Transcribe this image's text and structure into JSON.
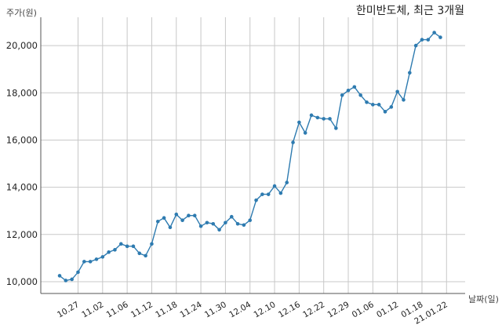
{
  "chart_data": {
    "type": "line",
    "title": "한미반도체, 최근 3개월",
    "ylabel": "주가(원)",
    "xlabel": "날짜(일)",
    "ylim": [
      9500,
      21200
    ],
    "yticks": [
      10000,
      12000,
      14000,
      16000,
      18000,
      20000
    ],
    "ytick_labels": [
      "10,000",
      "12,000",
      "14,000",
      "16,000",
      "18,000",
      "20,000"
    ],
    "grid": true,
    "line_color": "#2e7bb0",
    "xtick_labels": [
      "10.27",
      "11.02",
      "11.06",
      "11.12",
      "11.18",
      "11.24",
      "11.30",
      "12.04",
      "12.10",
      "12.16",
      "12.22",
      "12.29",
      "01.06",
      "01.12",
      "01.18",
      "21.01.22"
    ],
    "xtick_indices": [
      3,
      7,
      11,
      15,
      19,
      23,
      27,
      31,
      35,
      39,
      43,
      47,
      51,
      55,
      59,
      63
    ],
    "values": [
      10250,
      10050,
      10100,
      10400,
      10850,
      10850,
      10950,
      11050,
      11250,
      11350,
      11600,
      11500,
      11500,
      11200,
      11100,
      11600,
      12550,
      12700,
      12300,
      12850,
      12600,
      12800,
      12800,
      12350,
      12500,
      12450,
      12200,
      12500,
      12750,
      12450,
      12400,
      12600,
      13450,
      13700,
      13700,
      14050,
      13750,
      14200,
      15900,
      16750,
      16300,
      17050,
      16950,
      16900,
      16900,
      16500,
      17900,
      18100,
      18250,
      17900,
      17600,
      17500,
      17500,
      17200,
      17400,
      18050,
      17700,
      18850,
      20000,
      20250,
      20250,
      20550,
      20350
    ]
  }
}
